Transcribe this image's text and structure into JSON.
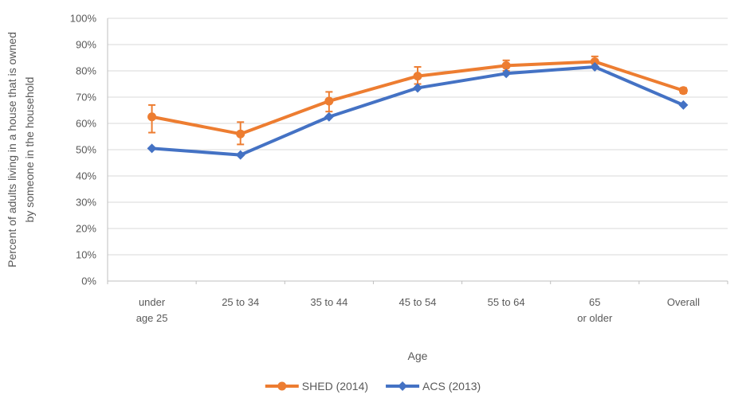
{
  "chart_data": {
    "type": "line",
    "title": "",
    "xlabel": "Age",
    "ylabel": "Percent of adults living in a house that is owned by someone in the household",
    "ylabel_lines": [
      "Percent of adults living in a house that is owned",
      "by someone in the household"
    ],
    "categories": [
      [
        "under",
        "age 25"
      ],
      [
        "25 to 34"
      ],
      [
        "35 to 44"
      ],
      [
        "45 to 54"
      ],
      [
        "55 to 64"
      ],
      [
        "65",
        "or older"
      ],
      [
        "Overall"
      ]
    ],
    "ylim": [
      0,
      100
    ],
    "ytick_step": 10,
    "ytick_suffix": "%",
    "ytick_labels": [
      "0%",
      "10%",
      "20%",
      "30%",
      "40%",
      "50%",
      "60%",
      "70%",
      "80%",
      "90%",
      "100%"
    ],
    "grid": true,
    "legend_position": "bottom",
    "series": [
      {
        "name": "SHED (2014)",
        "color": "#ED7D31",
        "marker": "circle",
        "values": [
          62.5,
          56,
          68.5,
          78,
          82,
          83.5,
          72.5
        ],
        "error_low": [
          56.5,
          52,
          64.5,
          75,
          80,
          81.5,
          71.5
        ],
        "error_high": [
          67,
          60.5,
          72,
          81.5,
          84,
          85.5,
          73.5
        ]
      },
      {
        "name": "ACS (2013)",
        "color": "#4472C4",
        "marker": "diamond",
        "values": [
          50.5,
          48,
          62.5,
          73.5,
          79,
          81.5,
          67
        ]
      }
    ],
    "colors": {
      "grid": "#D9D9D9",
      "axis": "#BFBFBF",
      "text": "#595959"
    }
  }
}
